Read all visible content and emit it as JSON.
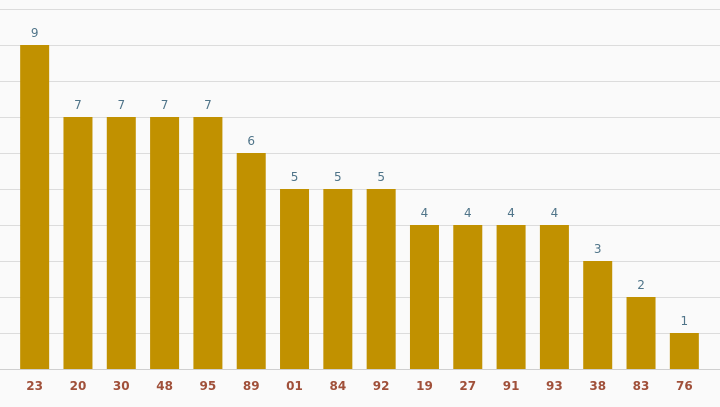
{
  "chart_data": {
    "type": "bar",
    "title": "",
    "xlabel": "",
    "ylabel": "",
    "categories": [
      "23",
      "20",
      "30",
      "48",
      "95",
      "89",
      "01",
      "84",
      "92",
      "19",
      "27",
      "91",
      "93",
      "38",
      "83",
      "76"
    ],
    "values": [
      9,
      7,
      7,
      7,
      7,
      6,
      5,
      5,
      5,
      4,
      4,
      4,
      4,
      3,
      2,
      1
    ],
    "ylim": [
      0,
      10
    ],
    "grid": true,
    "legend": "none",
    "colors": {
      "bar": "#c19100",
      "value_label": "#4f7489",
      "tick_label": "#a0503a",
      "grid": "#dcdcdc",
      "background": "#fafafa"
    }
  }
}
